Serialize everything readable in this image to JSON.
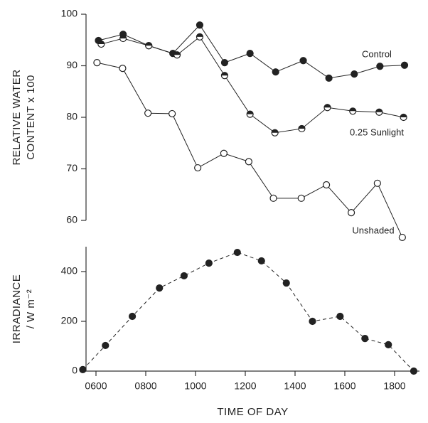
{
  "chart_data": [
    {
      "type": "line",
      "ylabel": [
        "RELATIVE WATER",
        "CONTENT x 100"
      ],
      "xlim": [
        5.6,
        19
      ],
      "ylim": [
        60,
        100
      ],
      "yticks": [
        60,
        70,
        80,
        90,
        100
      ],
      "series": [
        {
          "name": "Control",
          "color": "#222222",
          "marker": "filled",
          "x": [
            6.1,
            7.09,
            8.12,
            9.09,
            10.17,
            11.17,
            12.19,
            13.22,
            14.33,
            15.36,
            16.38,
            17.41,
            18.4
          ],
          "values": [
            94.9,
            96.1,
            93.9,
            92.4,
            97.9,
            90.6,
            92.4,
            88.8,
            91.0,
            87.6,
            88.4,
            89.9,
            90.1
          ]
        },
        {
          "name": "0.25 Sunlight",
          "color": "#222222",
          "marker": "half",
          "x": [
            6.21,
            7.09,
            8.12,
            9.26,
            10.17,
            11.17,
            12.19,
            13.19,
            14.27,
            15.3,
            16.32,
            17.38,
            18.36
          ],
          "values": [
            94.2,
            95.3,
            93.9,
            92.1,
            95.6,
            88.1,
            80.6,
            77.0,
            77.8,
            81.9,
            81.2,
            81.0,
            80.0
          ]
        },
        {
          "name": "Unshaded",
          "color": "#222222",
          "marker": "open",
          "x": [
            6.04,
            7.07,
            8.09,
            9.06,
            10.09,
            11.14,
            12.14,
            13.13,
            14.25,
            15.26,
            16.26,
            17.31,
            18.31
          ],
          "values": [
            90.6,
            89.5,
            80.8,
            80.7,
            70.2,
            73.0,
            71.4,
            64.3,
            64.3,
            66.9,
            61.5,
            67.2,
            56.7
          ]
        }
      ]
    },
    {
      "type": "line",
      "ylabel": [
        "IRRADIANCE",
        "/ W m⁻²"
      ],
      "xlabel": "TIME OF DAY",
      "xlim": [
        5.6,
        19
      ],
      "xticks": [
        {
          "value": 6,
          "label": "0600"
        },
        {
          "value": 8,
          "label": "0800"
        },
        {
          "value": 10,
          "label": "1000"
        },
        {
          "value": 12,
          "label": "1200"
        },
        {
          "value": 14,
          "label": "1400"
        },
        {
          "value": 16,
          "label": "1600"
        },
        {
          "value": 18,
          "label": "1800"
        }
      ],
      "ylim": [
        0,
        500
      ],
      "yticks": [
        0,
        200,
        400
      ],
      "series": [
        {
          "color": "#222222",
          "marker": "filled",
          "dashed": true,
          "x": [
            5.47,
            6.38,
            7.46,
            8.55,
            9.54,
            10.54,
            11.68,
            12.65,
            13.65,
            14.7,
            15.81,
            16.81,
            17.75,
            18.77
          ],
          "values": [
            6,
            103,
            220,
            334,
            383,
            434,
            477,
            443,
            354,
            200,
            220,
            131,
            106,
            0
          ]
        }
      ]
    }
  ]
}
